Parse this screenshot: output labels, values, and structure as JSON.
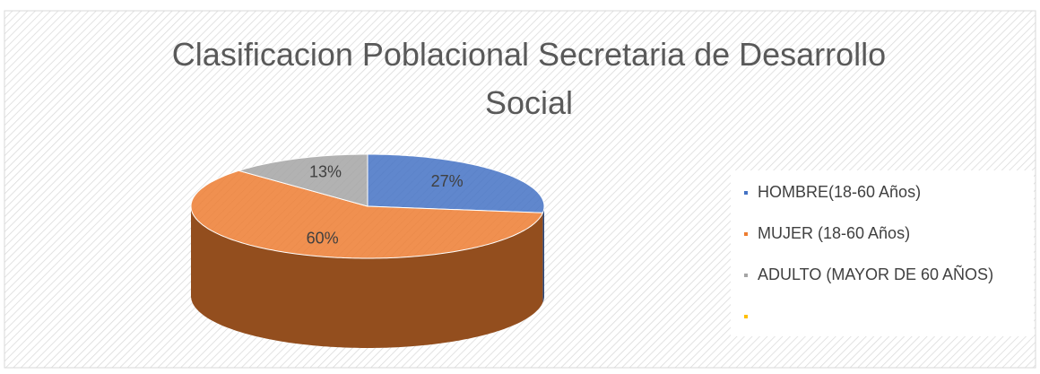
{
  "chart_data": {
    "type": "pie3d",
    "title": "Clasificacion Poblacional Secretaria de Desarrollo Social",
    "categories": [
      "HOMBRE(18-60 Años)",
      "MUJER (18-60 Años)",
      "ADULTO (MAYOR DE 60 AÑOS)",
      null
    ],
    "values": [
      27,
      60,
      13,
      0
    ],
    "value_labels": [
      "27%",
      "60%",
      "13%",
      null
    ],
    "colors": [
      "#4472c4",
      "#ed7d31",
      "#a5a5a5",
      "#ffc000"
    ],
    "legend": "right"
  }
}
